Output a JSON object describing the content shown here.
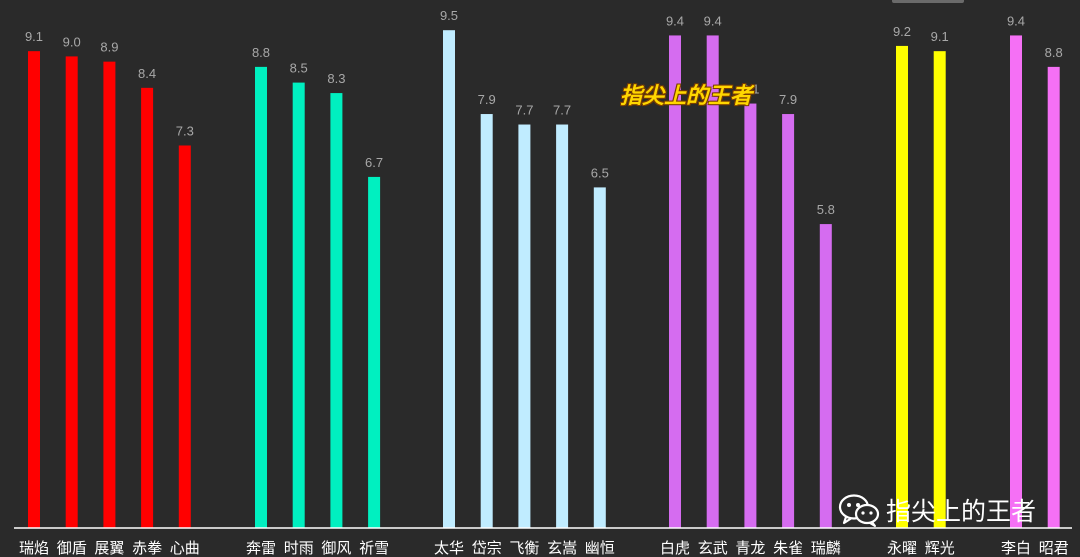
{
  "overlay": {
    "title": "指尖上的王者",
    "watermark_text": "指尖上的王者",
    "watermark_icon": "wechat-icon"
  },
  "colors": {
    "background": "#2a2a2a",
    "axis": "#ffffff",
    "groups": [
      "#ff0000",
      "#00f0c0",
      "#c0ecff",
      "#d56cf0",
      "#ffff00",
      "#f570f5"
    ]
  },
  "chart_data": {
    "type": "bar",
    "ylim": [
      0,
      10
    ],
    "grid": false,
    "legend": false,
    "xlabel": "",
    "ylabel": "",
    "groups": [
      {
        "categories": [
          "瑞焰",
          "御盾",
          "展翼",
          "赤拳",
          "心曲"
        ],
        "values": [
          9.1,
          9.0,
          8.9,
          8.4,
          7.3
        ]
      },
      {
        "categories": [
          "奔雷",
          "时雨",
          "御风",
          "祈雪"
        ],
        "values": [
          8.8,
          8.5,
          8.3,
          6.7
        ]
      },
      {
        "categories": [
          "太华",
          "岱宗",
          "飞衡",
          "玄嵩",
          "幽恒"
        ],
        "values": [
          9.5,
          7.9,
          7.7,
          7.7,
          6.5
        ]
      },
      {
        "categories": [
          "白虎",
          "玄武",
          "青龙",
          "朱雀",
          "瑞麟"
        ],
        "values": [
          9.4,
          9.4,
          8.1,
          7.9,
          5.8
        ]
      },
      {
        "categories": [
          "永曜",
          "辉光"
        ],
        "values": [
          9.2,
          9.1
        ]
      },
      {
        "categories": [
          "李白",
          "昭君"
        ],
        "values": [
          9.4,
          8.8
        ]
      }
    ]
  }
}
